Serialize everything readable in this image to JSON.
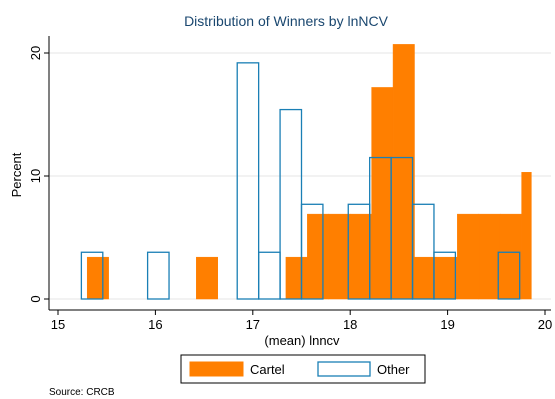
{
  "chart_data": {
    "type": "bar",
    "title": "Distribution of Winners by lnNCV",
    "xlabel": "(mean) lnncv",
    "ylabel": "Percent",
    "source": "Source: CRCB",
    "xlim": [
      15,
      20
    ],
    "ylim": [
      0,
      22
    ],
    "xticks": [
      "15",
      "16",
      "17",
      "18",
      "19",
      "20"
    ],
    "yticks": [
      "0",
      "10",
      "20"
    ],
    "grid": true,
    "legend_position": "bottom",
    "colors": {
      "Cartel": "#ff7f00",
      "Other": "#1a7fb5"
    },
    "series": [
      {
        "name": "Cartel",
        "style": "filled",
        "bins": [
          {
            "x0": 15.3,
            "x1": 15.52,
            "value": 3.4
          },
          {
            "x0": 16.42,
            "x1": 16.64,
            "value": 3.4
          },
          {
            "x0": 17.34,
            "x1": 17.56,
            "value": 3.4
          },
          {
            "x0": 17.56,
            "x1": 17.78,
            "value": 6.9
          },
          {
            "x0": 17.78,
            "x1": 18.0,
            "value": 6.9
          },
          {
            "x0": 18.0,
            "x1": 18.22,
            "value": 6.9
          },
          {
            "x0": 18.22,
            "x1": 18.44,
            "value": 17.2
          },
          {
            "x0": 18.44,
            "x1": 18.66,
            "value": 20.7
          },
          {
            "x0": 18.66,
            "x1": 18.88,
            "value": 3.4
          },
          {
            "x0": 18.88,
            "x1": 19.1,
            "value": 3.4
          },
          {
            "x0": 19.1,
            "x1": 19.32,
            "value": 6.9
          },
          {
            "x0": 19.32,
            "x1": 19.54,
            "value": 6.9
          },
          {
            "x0": 19.54,
            "x1": 19.76,
            "value": 6.9
          },
          {
            "x0": 19.76,
            "x1": 19.86,
            "value": 10.3
          }
        ]
      },
      {
        "name": "Other",
        "style": "outline",
        "bins": [
          {
            "x0": 15.24,
            "x1": 15.46,
            "value": 3.8
          },
          {
            "x0": 15.92,
            "x1": 16.14,
            "value": 3.8
          },
          {
            "x0": 16.84,
            "x1": 17.06,
            "value": 19.2
          },
          {
            "x0": 17.06,
            "x1": 17.28,
            "value": 3.8
          },
          {
            "x0": 17.28,
            "x1": 17.5,
            "value": 15.4
          },
          {
            "x0": 17.5,
            "x1": 17.72,
            "value": 7.7
          },
          {
            "x0": 17.98,
            "x1": 18.2,
            "value": 7.7
          },
          {
            "x0": 18.2,
            "x1": 18.42,
            "value": 11.5
          },
          {
            "x0": 18.42,
            "x1": 18.64,
            "value": 11.5
          },
          {
            "x0": 18.64,
            "x1": 18.86,
            "value": 7.7
          },
          {
            "x0": 18.86,
            "x1": 19.08,
            "value": 3.8
          },
          {
            "x0": 19.52,
            "x1": 19.74,
            "value": 3.8
          }
        ]
      }
    ]
  }
}
